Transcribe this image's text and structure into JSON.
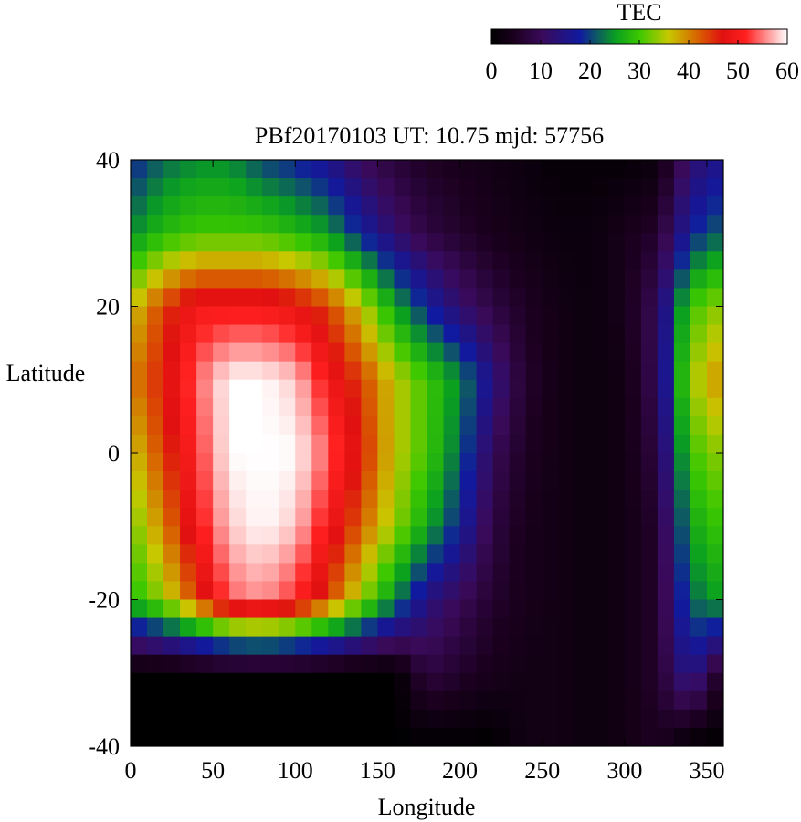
{
  "chart_data": {
    "type": "heatmap",
    "title": "PBf20170103  UT: 10.75  mjd: 57756",
    "xlabel": "Longitude",
    "ylabel": "Latitude",
    "xlim": [
      0,
      360
    ],
    "ylim": [
      -40,
      40
    ],
    "xticks": [
      "0",
      "50",
      "100",
      "150",
      "200",
      "250",
      "300",
      "350"
    ],
    "yticks": [
      "-40",
      "-20",
      "0",
      "20",
      "40"
    ],
    "colorbar": {
      "label": "TEC",
      "range": [
        0,
        60
      ],
      "ticks": [
        "0",
        "10",
        "20",
        "30",
        "40",
        "50",
        "60"
      ]
    },
    "grid": false,
    "lat_rows": [
      40,
      30,
      20,
      10,
      0,
      -10,
      -20,
      -30,
      -40
    ],
    "lon_cols": [
      0,
      20,
      40,
      60,
      80,
      100,
      120,
      140,
      160,
      180,
      200,
      220,
      240,
      260,
      280,
      300,
      320,
      340,
      360
    ],
    "values": [
      [
        18,
        22,
        24,
        24,
        20,
        18,
        15,
        10,
        7,
        5,
        4,
        3,
        2,
        1,
        1,
        1,
        2,
        12,
        16
      ],
      [
        24,
        28,
        30,
        30,
        30,
        28,
        25,
        18,
        12,
        8,
        6,
        4,
        3,
        2,
        2,
        4,
        6,
        18,
        22
      ],
      [
        36,
        44,
        50,
        50,
        50,
        48,
        44,
        36,
        26,
        18,
        12,
        8,
        5,
        3,
        2,
        4,
        10,
        30,
        34
      ],
      [
        40,
        46,
        54,
        60,
        60,
        58,
        50,
        44,
        36,
        30,
        24,
        14,
        6,
        3,
        2,
        3,
        10,
        34,
        40
      ],
      [
        36,
        44,
        52,
        60,
        60,
        60,
        54,
        46,
        36,
        30,
        22,
        10,
        5,
        3,
        2,
        3,
        8,
        30,
        34
      ],
      [
        32,
        40,
        50,
        58,
        60,
        58,
        50,
        42,
        34,
        26,
        18,
        8,
        4,
        3,
        2,
        3,
        6,
        26,
        30
      ],
      [
        28,
        34,
        44,
        54,
        56,
        52,
        44,
        34,
        24,
        14,
        10,
        6,
        4,
        3,
        2,
        3,
        6,
        22,
        26
      ],
      [
        0,
        0,
        0,
        0,
        0,
        0,
        0,
        0,
        0,
        8,
        6,
        4,
        3,
        3,
        2,
        3,
        6,
        16,
        4
      ],
      [
        0,
        0,
        0,
        0,
        0,
        0,
        0,
        0,
        0,
        0,
        0,
        0,
        3,
        3,
        2,
        3,
        5,
        0,
        0
      ]
    ]
  }
}
